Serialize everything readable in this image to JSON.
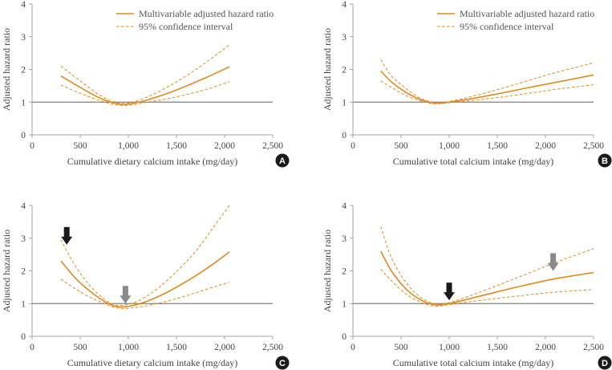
{
  "colors": {
    "curve": "#e08a1e",
    "reference": "#7f7f7f",
    "axis": "#a6a6a6",
    "text": "#444444",
    "badge": "#1a1a1a",
    "arrow_black": "#1a1a1a",
    "arrow_gray": "#8a8a8a"
  },
  "chart_data": [
    {
      "panel": "A",
      "type": "line",
      "xlabel": "Cumulative dietary calcium intake (mg/day)",
      "ylabel": "Adjusted hazard ratio",
      "xlim": [
        0,
        2500
      ],
      "ylim": [
        0,
        4
      ],
      "xticks": [
        "0",
        "500",
        "1,000",
        "1,500",
        "2,000",
        "2,500"
      ],
      "yticks": [
        "0",
        "1",
        "2",
        "3",
        "4"
      ],
      "reference_line": 1,
      "legend": {
        "position": "top-right",
        "entries": [
          "Multivariable adjusted hazard ratio",
          "95% confidence interval"
        ]
      },
      "series": [
        {
          "name": "Multivariable adjusted hazard ratio",
          "style": "solid",
          "x": [
            300,
            500,
            700,
            850,
            950,
            1050,
            1200,
            1400,
            1600,
            1800,
            2050
          ],
          "y": [
            1.8,
            1.45,
            1.13,
            0.97,
            0.93,
            0.96,
            1.07,
            1.26,
            1.49,
            1.74,
            2.08
          ]
        },
        {
          "name": "95% confidence interval (upper)",
          "style": "dashed",
          "x": [
            300,
            500,
            700,
            850,
            950,
            1050,
            1200,
            1400,
            1600,
            1800,
            2050
          ],
          "y": [
            2.1,
            1.65,
            1.22,
            1.01,
            0.96,
            1.0,
            1.16,
            1.45,
            1.8,
            2.2,
            2.75
          ]
        },
        {
          "name": "95% confidence interval (lower)",
          "style": "dashed",
          "x": [
            300,
            500,
            700,
            850,
            950,
            1050,
            1200,
            1400,
            1600,
            1800,
            2050
          ],
          "y": [
            1.52,
            1.27,
            1.05,
            0.93,
            0.9,
            0.92,
            1.0,
            1.1,
            1.23,
            1.38,
            1.62
          ]
        }
      ],
      "arrows": []
    },
    {
      "panel": "B",
      "type": "line",
      "xlabel": "Cumulative total calcium intake (mg/day)",
      "ylabel": "Adjusted hazard ratio",
      "xlim": [
        0,
        2500
      ],
      "ylim": [
        0,
        4
      ],
      "xticks": [
        "0",
        "500",
        "1,000",
        "1,500",
        "2,000",
        "2,500"
      ],
      "yticks": [
        "0",
        "1",
        "2",
        "3",
        "4"
      ],
      "reference_line": 1,
      "legend": {
        "position": "top-right",
        "entries": [
          "Multivariable adjusted hazard ratio",
          "95% confidence interval"
        ]
      },
      "series": [
        {
          "name": "Multivariable adjusted hazard ratio",
          "style": "solid",
          "x": [
            290,
            400,
            550,
            700,
            850,
            1000,
            1200,
            1500,
            1800,
            2100,
            2500
          ],
          "y": [
            1.95,
            1.62,
            1.3,
            1.08,
            0.97,
            1.0,
            1.09,
            1.25,
            1.43,
            1.6,
            1.83
          ]
        },
        {
          "name": "95% confidence interval (upper)",
          "style": "dashed",
          "x": [
            290,
            400,
            550,
            700,
            850,
            1000,
            1200,
            1500,
            1800,
            2100,
            2500
          ],
          "y": [
            2.3,
            1.8,
            1.42,
            1.12,
            0.99,
            1.02,
            1.15,
            1.38,
            1.64,
            1.9,
            2.2
          ]
        },
        {
          "name": "95% confidence interval (lower)",
          "style": "dashed",
          "x": [
            290,
            400,
            550,
            700,
            850,
            1000,
            1200,
            1500,
            1800,
            2100,
            2500
          ],
          "y": [
            1.65,
            1.45,
            1.2,
            1.04,
            0.95,
            0.98,
            1.04,
            1.14,
            1.26,
            1.39,
            1.53
          ]
        }
      ],
      "arrows": []
    },
    {
      "panel": "C",
      "type": "line",
      "xlabel": "Cumulative dietary calcium intake (mg/day)",
      "ylabel": "Adjusted hazard ratio",
      "xlim": [
        0,
        2500
      ],
      "ylim": [
        0,
        4
      ],
      "xticks": [
        "0",
        "500",
        "1,000",
        "1,500",
        "2,000",
        "2,500"
      ],
      "yticks": [
        "0",
        "1",
        "2",
        "3",
        "4"
      ],
      "reference_line": 1,
      "legend": null,
      "series": [
        {
          "name": "Multivariable adjusted hazard ratio",
          "style": "solid",
          "x": [
            300,
            450,
            600,
            750,
            850,
            950,
            1100,
            1300,
            1500,
            1700,
            1900,
            2050
          ],
          "y": [
            2.3,
            1.78,
            1.38,
            1.07,
            0.93,
            0.9,
            0.98,
            1.2,
            1.5,
            1.85,
            2.25,
            2.58
          ]
        },
        {
          "name": "95% confidence interval (upper)",
          "style": "dashed",
          "x": [
            300,
            450,
            600,
            750,
            850,
            950,
            1100,
            1300,
            1500,
            1700,
            1900,
            2050
          ],
          "y": [
            2.95,
            2.15,
            1.55,
            1.14,
            0.97,
            0.95,
            1.08,
            1.45,
            1.98,
            2.6,
            3.4,
            4.0
          ]
        },
        {
          "name": "95% confidence interval (lower)",
          "style": "dashed",
          "x": [
            300,
            450,
            600,
            750,
            850,
            950,
            1100,
            1300,
            1500,
            1700,
            1900,
            2050
          ],
          "y": [
            1.75,
            1.45,
            1.2,
            1.0,
            0.89,
            0.85,
            0.89,
            1.0,
            1.15,
            1.33,
            1.52,
            1.65
          ]
        }
      ],
      "arrows": [
        {
          "x": 360,
          "y": 2.8,
          "color": "black"
        },
        {
          "x": 970,
          "y": 1.0,
          "color": "gray"
        }
      ]
    },
    {
      "panel": "D",
      "type": "line",
      "xlabel": "Cumulative total calcium intake (mg/day)",
      "ylabel": "Adjusted hazard ratio",
      "xlim": [
        0,
        2500
      ],
      "ylim": [
        0,
        4
      ],
      "xticks": [
        "0",
        "500",
        "1,000",
        "1,500",
        "2,000",
        "2,500"
      ],
      "yticks": [
        "0",
        "1",
        "2",
        "3",
        "4"
      ],
      "reference_line": 1,
      "legend": null,
      "series": [
        {
          "name": "Multivariable adjusted hazard ratio",
          "style": "solid",
          "x": [
            290,
            400,
            550,
            700,
            850,
            1000,
            1200,
            1500,
            1800,
            2100,
            2500
          ],
          "y": [
            2.6,
            2.0,
            1.45,
            1.12,
            0.96,
            1.0,
            1.14,
            1.36,
            1.57,
            1.76,
            1.95
          ]
        },
        {
          "name": "95% confidence interval (upper)",
          "style": "dashed",
          "x": [
            290,
            400,
            550,
            700,
            850,
            1000,
            1200,
            1500,
            1800,
            2100,
            2500
          ],
          "y": [
            3.35,
            2.4,
            1.65,
            1.2,
            0.99,
            1.03,
            1.22,
            1.55,
            1.9,
            2.25,
            2.68
          ]
        },
        {
          "name": "95% confidence interval (lower)",
          "style": "dashed",
          "x": [
            290,
            400,
            550,
            700,
            850,
            1000,
            1200,
            1500,
            1800,
            2100,
            2500
          ],
          "y": [
            2.05,
            1.7,
            1.3,
            1.05,
            0.92,
            0.97,
            1.05,
            1.16,
            1.26,
            1.35,
            1.43
          ]
        }
      ],
      "arrows": [
        {
          "x": 1000,
          "y": 1.1,
          "color": "black"
        },
        {
          "x": 2080,
          "y": 2.0,
          "color": "gray"
        }
      ]
    }
  ]
}
